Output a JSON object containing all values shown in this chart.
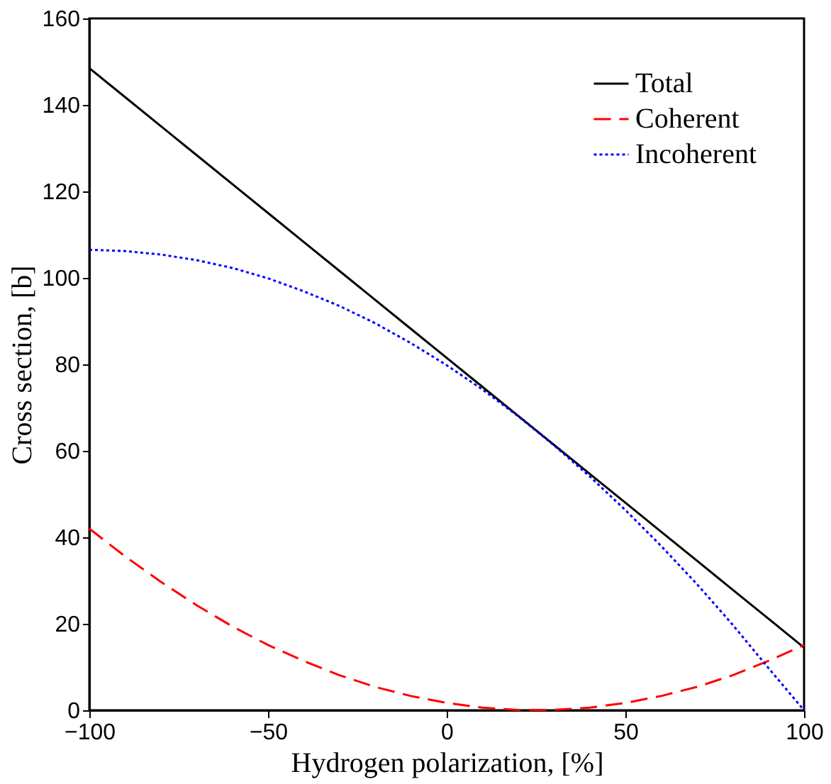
{
  "chart_data": {
    "type": "line",
    "xlabel": "Hydrogen polarization, [%]",
    "ylabel": "Cross section, [b]",
    "xlim": [
      -100,
      100
    ],
    "ylim": [
      0,
      160
    ],
    "xticks": [
      -100,
      -50,
      0,
      50,
      100
    ],
    "yticks": [
      0,
      20,
      40,
      60,
      80,
      100,
      120,
      140,
      160
    ],
    "grid": false,
    "legend": "top right",
    "marker": "none",
    "x": [
      -100,
      -90,
      -80,
      -70,
      -60,
      -50,
      -40,
      -30,
      -20,
      -10,
      0,
      10,
      20,
      30,
      40,
      50,
      60,
      70,
      80,
      90,
      100
    ],
    "series": [
      {
        "name": "Total",
        "color": "#000000",
        "line_style": "solid",
        "values": [
          148.5,
          141.8,
          135.1,
          128.4,
          121.7,
          115,
          108.3,
          101.6,
          94.9,
          88.2,
          81.5,
          74.8,
          68.1,
          61.4,
          54.7,
          48,
          41.3,
          34.6,
          27.9,
          21.2,
          14.5
        ]
      },
      {
        "name": "Coherent",
        "color": "#ff0000",
        "line_style": "dashed",
        "values": [
          42,
          35.6,
          29.7,
          24.3,
          19.4,
          15.1,
          11.4,
          8.1,
          5.4,
          3.3,
          1.7,
          0.6,
          0.1,
          0.1,
          0.6,
          1.7,
          3.3,
          5.4,
          8.1,
          11.4,
          15.1
        ]
      },
      {
        "name": "Incoherent",
        "color": "#0000ff",
        "line_style": "dotted",
        "values": [
          106.5,
          106.2,
          105.4,
          104.1,
          102.3,
          99.9,
          96.9,
          93.5,
          89.5,
          84.9,
          79.8,
          74.2,
          68,
          61.3,
          54.1,
          46.3,
          38,
          29.2,
          19.8,
          9.8,
          0
        ]
      }
    ]
  }
}
